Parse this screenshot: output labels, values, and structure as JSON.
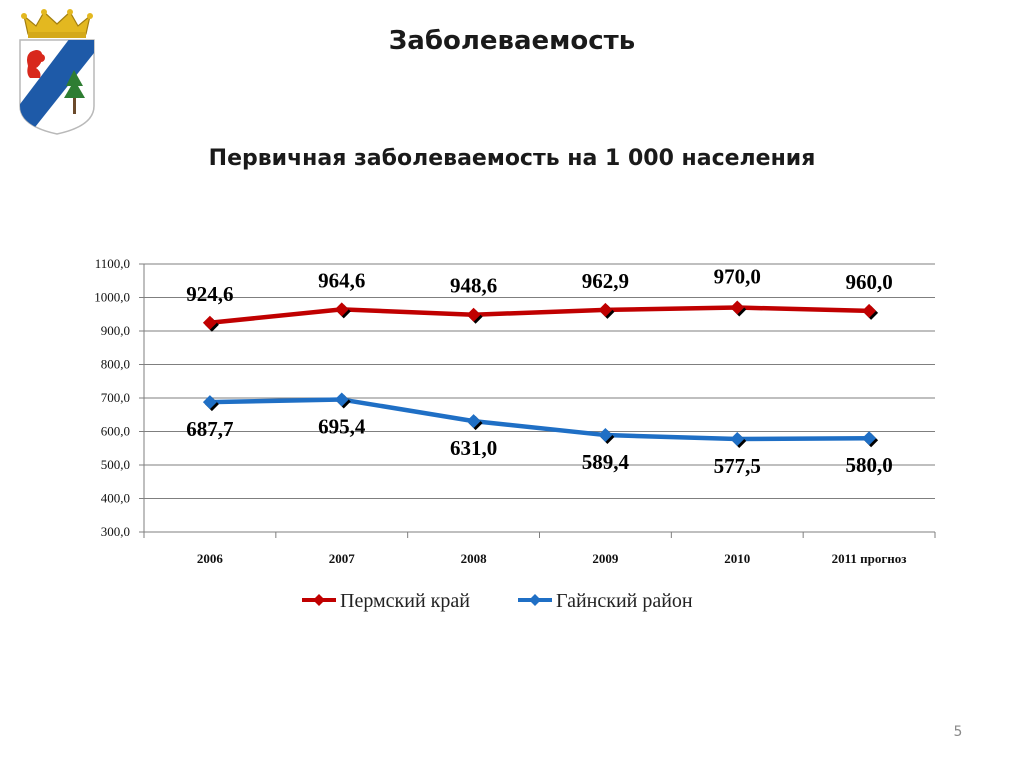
{
  "slide": {
    "title": "Заболеваемость",
    "page_number": "5"
  },
  "colors": {
    "series_1": "#c00000",
    "series_2": "#1f6fc5",
    "grid": "#7f7f7f",
    "coat_shield": "#ffffff",
    "coat_band": "#1e5aa8",
    "coat_crown": "#e3b820"
  },
  "emblem": {
    "name": "coat-of-arms",
    "icons": [
      "crown-icon",
      "squirrel-icon",
      "pine-tree-icon"
    ]
  },
  "chart_data": {
    "type": "line",
    "title": "Первичная заболеваемость на 1 000 населения",
    "categories": [
      "2006",
      "2007",
      "2008",
      "2009",
      "2010",
      "2011 прогноз"
    ],
    "ylim": [
      300,
      1100
    ],
    "yticks": [
      "300,0",
      "400,0",
      "500,0",
      "600,0",
      "700,0",
      "800,0",
      "900,0",
      "1000,0",
      "1100,0"
    ],
    "ytick_values": [
      300,
      400,
      500,
      600,
      700,
      800,
      900,
      1000,
      1100
    ],
    "grid": true,
    "legend_position": "bottom",
    "series": [
      {
        "name": "Пермский край",
        "color": "#c00000",
        "values": [
          924.6,
          964.6,
          948.6,
          962.9,
          970.0,
          960.0
        ],
        "labels": [
          "924,6",
          "964,6",
          "948,6",
          "962,9",
          "970,0",
          "960,0"
        ]
      },
      {
        "name": "Гайнский район",
        "color": "#1f6fc5",
        "values": [
          687.7,
          695.4,
          631.0,
          589.4,
          577.5,
          580.0
        ],
        "labels": [
          "687,7",
          "695,4",
          "631,0",
          "589,4",
          "577,5",
          "580,0"
        ]
      }
    ]
  }
}
